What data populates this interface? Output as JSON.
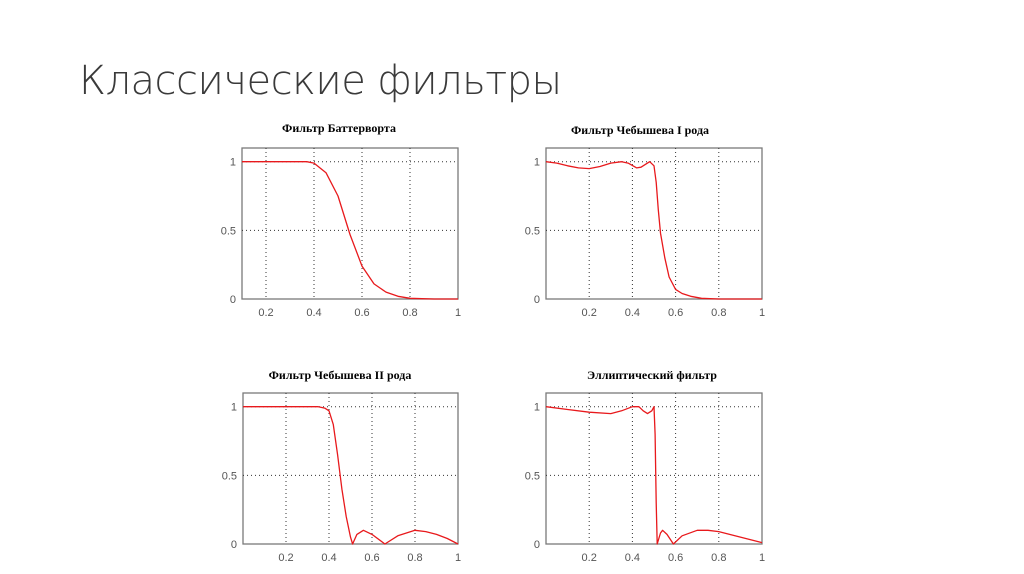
{
  "slide": {
    "title": "Классические фильтры"
  },
  "colors": {
    "curve": "#e8191c",
    "axes": "#7a7a7a",
    "grid": "#333333"
  },
  "chart_data": [
    {
      "type": "line",
      "title": "Фильтр Баттерворта",
      "xlim": [
        0.1,
        1
      ],
      "ylim": [
        0,
        1.1
      ],
      "grid": true,
      "xticks": [
        "0.2",
        "0.4",
        "0.6",
        "0.8",
        "1"
      ],
      "yticks": [
        "0",
        "0.5",
        "1"
      ],
      "x": [
        0.1,
        0.2,
        0.3,
        0.37,
        0.4,
        0.45,
        0.5,
        0.55,
        0.6,
        0.65,
        0.7,
        0.75,
        0.8,
        0.9,
        1
      ],
      "y": [
        1,
        1,
        1,
        1,
        0.99,
        0.92,
        0.75,
        0.47,
        0.24,
        0.11,
        0.05,
        0.02,
        0.005,
        0,
        0
      ]
    },
    {
      "type": "line",
      "title": "Фильтр Чебышева I рода",
      "xlim": [
        0,
        1
      ],
      "ylim": [
        0,
        1.1
      ],
      "grid": true,
      "xticks": [
        "0.2",
        "0.4",
        "0.6",
        "0.8",
        "1"
      ],
      "yticks": [
        "0",
        "0.5",
        "1"
      ],
      "x": [
        0,
        0.05,
        0.1,
        0.15,
        0.2,
        0.25,
        0.3,
        0.35,
        0.38,
        0.42,
        0.44,
        0.47,
        0.48,
        0.5,
        0.51,
        0.52,
        0.53,
        0.55,
        0.57,
        0.6,
        0.63,
        0.67,
        0.72,
        0.8,
        1
      ],
      "y": [
        1,
        0.99,
        0.97,
        0.955,
        0.95,
        0.965,
        0.99,
        1,
        0.99,
        0.955,
        0.96,
        0.99,
        1,
        0.97,
        0.85,
        0.65,
        0.48,
        0.3,
        0.16,
        0.07,
        0.04,
        0.02,
        0.005,
        0,
        0
      ]
    },
    {
      "type": "line",
      "title": "Фильтр Чебышева II рода",
      "xlim": [
        0,
        1
      ],
      "ylim": [
        0,
        1.1
      ],
      "grid": true,
      "xticks": [
        "0.2",
        "0.4",
        "0.6",
        "0.8",
        "1"
      ],
      "yticks": [
        "0",
        "0.5",
        "1"
      ],
      "x": [
        0,
        0.35,
        0.38,
        0.4,
        0.42,
        0.44,
        0.46,
        0.48,
        0.5,
        0.51,
        0.53,
        0.56,
        0.6,
        0.66,
        0.72,
        0.8,
        0.85,
        0.9,
        0.95,
        1
      ],
      "y": [
        1,
        1,
        0.99,
        0.97,
        0.87,
        0.65,
        0.4,
        0.2,
        0.05,
        0,
        0.07,
        0.1,
        0.07,
        0,
        0.06,
        0.1,
        0.09,
        0.07,
        0.04,
        0
      ]
    },
    {
      "type": "line",
      "title": "Эллиптический фильтр",
      "xlim": [
        0,
        1
      ],
      "ylim": [
        0,
        1.1
      ],
      "grid": true,
      "xticks": [
        "0.2",
        "0.4",
        "0.6",
        "0.8",
        "1"
      ],
      "yticks": [
        "0",
        "0.5",
        "1"
      ],
      "x": [
        0,
        0.1,
        0.2,
        0.3,
        0.35,
        0.4,
        0.43,
        0.45,
        0.47,
        0.49,
        0.5,
        0.505,
        0.51,
        0.515,
        0.53,
        0.54,
        0.56,
        0.59,
        0.63,
        0.7,
        0.75,
        0.8,
        0.9,
        1
      ],
      "y": [
        1,
        0.98,
        0.96,
        0.95,
        0.97,
        1,
        1,
        0.97,
        0.95,
        0.97,
        1,
        0.8,
        0.3,
        0,
        0.08,
        0.1,
        0.07,
        0,
        0.06,
        0.1,
        0.1,
        0.09,
        0.05,
        0.01
      ]
    }
  ]
}
